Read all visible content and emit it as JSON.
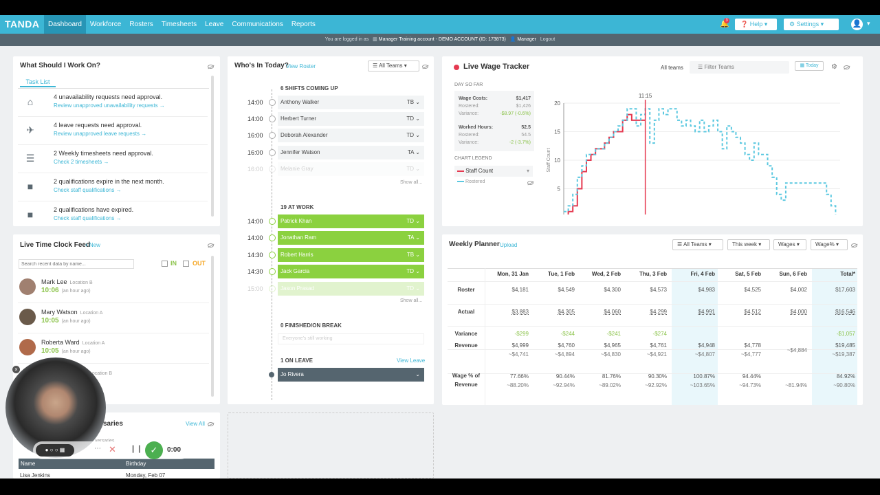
{
  "brand": "TANDA",
  "nav": [
    "Dashboard",
    "Workforce",
    "Rosters",
    "Timesheets",
    "Leave",
    "Communications",
    "Reports"
  ],
  "topbar": {
    "badge": "3",
    "help": "Help",
    "settings": "Settings"
  },
  "subbar": {
    "text": "You are logged in as",
    "account": "Manager Training account - DEMO ACCOUNT (ID: 173873)",
    "role": "Manager",
    "logout": "Logout"
  },
  "work": {
    "title": "What Should I Work On?",
    "tab": "Task List",
    "tasks": [
      {
        "icon": "home-icon",
        "text": "4 unavailability requests need approval.",
        "link": "Review unapproved unavailability requests →"
      },
      {
        "icon": "plane-icon",
        "text": "4 leave requests need approval.",
        "link": "Review unapproved leave requests →"
      },
      {
        "icon": "checklist-icon",
        "text": "2 Weekly timesheets need approval.",
        "link": "Check 2 timesheets →"
      },
      {
        "icon": "book-icon",
        "text": "2 qualifications expire in the next month.",
        "link": "Check staff qualifications →"
      },
      {
        "icon": "book-icon",
        "text": "2 qualifications have expired.",
        "link": "Check staff qualifications →"
      }
    ]
  },
  "feed": {
    "title": "Live Time Clock Feed",
    "new": "+ New",
    "search": "Search recent data by name...",
    "in": "IN",
    "out": "OUT",
    "items": [
      {
        "name": "Mark Lee",
        "loc": "Location B",
        "time": "10:06",
        "ago": "(an hour ago)"
      },
      {
        "name": "Mary Watson",
        "loc": "Location A",
        "time": "10:05",
        "ago": "(an hour ago)"
      },
      {
        "name": "Roberta Ward",
        "loc": "Location A",
        "time": "10:05",
        "ago": "(an hour ago)"
      },
      {
        "name": "",
        "loc": "Location B",
        "time": "",
        "ago": ""
      }
    ]
  },
  "anniv": {
    "title": "saries",
    "view": "View All",
    "sub": "versaries",
    "col1": "Name",
    "col2": "Birthday",
    "row_name": "Lisa Jenkins",
    "row_date": "Monday, Feb 07"
  },
  "recorder": {
    "time": "0:00"
  },
  "who": {
    "title": "Who's In Today?",
    "view": "View Roster",
    "teams": "All Teams",
    "coming": "6 SHIFTS COMING UP",
    "show_all": "Show all...",
    "upcoming": [
      {
        "t": "14:00",
        "n": "Anthony Walker",
        "tag": "TB"
      },
      {
        "t": "14:00",
        "n": "Herbert Turner",
        "tag": "TD"
      },
      {
        "t": "16:00",
        "n": "Deborah Alexander",
        "tag": "TD"
      },
      {
        "t": "16:00",
        "n": "Jennifer Watson",
        "tag": "TA"
      },
      {
        "t": "16:00",
        "n": "Melanie Gray",
        "tag": "TD"
      }
    ],
    "atwork": "19 AT WORK",
    "working": [
      {
        "t": "14:00",
        "n": "Patrick Khan",
        "tag": "TD"
      },
      {
        "t": "14:00",
        "n": "Jonathan Ram",
        "tag": "TA"
      },
      {
        "t": "14:30",
        "n": "Robert Harris",
        "tag": "TB"
      },
      {
        "t": "14:30",
        "n": "Jack Garcia",
        "tag": "TD"
      },
      {
        "t": "15:00",
        "n": "Jason Prasad",
        "tag": "TD"
      }
    ],
    "finished": "0 FINISHED/ON BREAK",
    "finished_empty": "Everyone's still working",
    "leave": "1 ON LEAVE",
    "view_leave": "View Leave",
    "leave_name": "Jo Rivera"
  },
  "wage": {
    "title": "Live Wage Tracker",
    "teams_label": "All teams",
    "filter": "Filter Teams",
    "today": "Today",
    "day_so_far": "DAY SO FAR",
    "wage_costs_label": "Wage Costs:",
    "wage_costs": "$1,417",
    "rostered_label": "Rostered:",
    "rostered": "$1,426",
    "variance_label": "Variance:",
    "variance": "-$8.97 (-0.6%)",
    "hours_label": "Worked Hours:",
    "hours": "52.5",
    "hrs_rostered": "54.5",
    "hrs_variance": "-2 (-3.7%)",
    "legend_title": "CHART LEGEND",
    "legend1": "Staff Count",
    "legend2": "Rostered"
  },
  "chart_data": {
    "type": "line",
    "now_label": "11:15",
    "ylabel": "Staff Count",
    "ylim": [
      0,
      20
    ],
    "yticks": [
      "0",
      "5",
      "10",
      "15",
      "20"
    ],
    "xticks": [
      "06:45",
      "09:15",
      "11:45",
      "14:15",
      "16:45",
      "19:15",
      "21:45"
    ],
    "xlim_hours": [
      6.75,
      22.0
    ],
    "now_hour": 11.25,
    "series": [
      {
        "name": "Staff Count",
        "color": "#e53950",
        "x": [
          6.75,
          7.0,
          7.25,
          7.5,
          7.75,
          8.0,
          8.25,
          8.5,
          8.75,
          9.0,
          9.25,
          9.5,
          9.75,
          10.0,
          10.25,
          10.5,
          11.0,
          11.25
        ],
        "y": [
          0,
          1,
          2,
          5,
          8,
          10,
          11,
          12,
          12,
          13,
          14,
          15,
          15,
          17,
          18,
          17,
          17,
          17
        ]
      },
      {
        "name": "Rostered",
        "color": "#5bc8e0",
        "x": [
          6.75,
          7.0,
          7.25,
          7.5,
          7.75,
          8.0,
          8.25,
          8.5,
          8.75,
          9.0,
          9.25,
          9.5,
          9.75,
          10.0,
          10.25,
          10.5,
          10.75,
          11.0,
          11.25,
          11.5,
          11.75,
          12.0,
          12.25,
          12.5,
          12.75,
          13.0,
          13.25,
          13.5,
          13.75,
          14.0,
          14.25,
          14.5,
          14.75,
          15.0,
          15.25,
          15.5,
          15.75,
          16.0,
          16.25,
          16.5,
          16.75,
          17.0,
          17.25,
          17.5,
          17.75,
          18.0,
          18.25,
          18.5,
          18.75,
          19.0,
          19.25,
          19.5,
          19.75,
          20.0,
          20.25,
          20.5,
          20.75,
          21.0,
          21.25,
          21.5,
          21.75
        ],
        "y": [
          1,
          2,
          4,
          7,
          9,
          11,
          11,
          12,
          12,
          13,
          14,
          15,
          16,
          17,
          19,
          19,
          16,
          18,
          19,
          13,
          17,
          19,
          18,
          19,
          19,
          17,
          16,
          17,
          16,
          15,
          17,
          15,
          16,
          17,
          15,
          12,
          16,
          15,
          14,
          13,
          11,
          10,
          13,
          11,
          11,
          9,
          7,
          4,
          3,
          6,
          6,
          6,
          6,
          6,
          6,
          6,
          6,
          6,
          4,
          2,
          0
        ]
      }
    ]
  },
  "planner": {
    "title": "Weekly Planner",
    "upload": "Upload",
    "teams": "All Teams",
    "week": "This week",
    "wages": "Wages",
    "wagepct": "Wage%",
    "cols": [
      "Mon, 31 Jan",
      "Tue, 1 Feb",
      "Wed, 2 Feb",
      "Thu, 3 Feb",
      "Fri, 4 Feb",
      "Sat, 5 Feb",
      "Sun, 6 Feb",
      "Total*"
    ],
    "rows": {
      "roster": {
        "label": "Roster",
        "vals": [
          "$4,181",
          "$4,549",
          "$4,300",
          "$4,573",
          "$4,983",
          "$4,525",
          "$4,002",
          "$17,603"
        ]
      },
      "actual": {
        "label": "Actual",
        "vals": [
          "$3,883",
          "$4,305",
          "$4,060",
          "$4,299",
          "$4,991",
          "$4,512",
          "$4,000",
          "$16,546"
        ]
      },
      "variance": {
        "label": "Variance",
        "vals": [
          "-$299",
          "-$244",
          "-$241",
          "-$274",
          "",
          "",
          "",
          "-$1,057"
        ]
      },
      "revenue": {
        "label": "Revenue",
        "vals": [
          "$4,999",
          "$4,760",
          "$4,965",
          "$4,761",
          "$4,948",
          "$4,778",
          "",
          "$19,485"
        ],
        "sub": [
          "~$4,741",
          "~$4,894",
          "~$4,830",
          "~$4,921",
          "~$4,807",
          "~$4,777",
          "~$4,884",
          "~$19,387"
        ]
      },
      "wagepct": {
        "label1": "Wage % of",
        "label2": "Revenue",
        "vals": [
          "77.66%",
          "90.44%",
          "81.76%",
          "90.30%",
          "100.87%",
          "94.44%",
          "",
          "84.92%"
        ],
        "sub": [
          "~88.20%",
          "~92.94%",
          "~89.02%",
          "~92.92%",
          "~103.65%",
          "~94.73%",
          "~81.94%",
          "~90.80%"
        ]
      }
    }
  }
}
